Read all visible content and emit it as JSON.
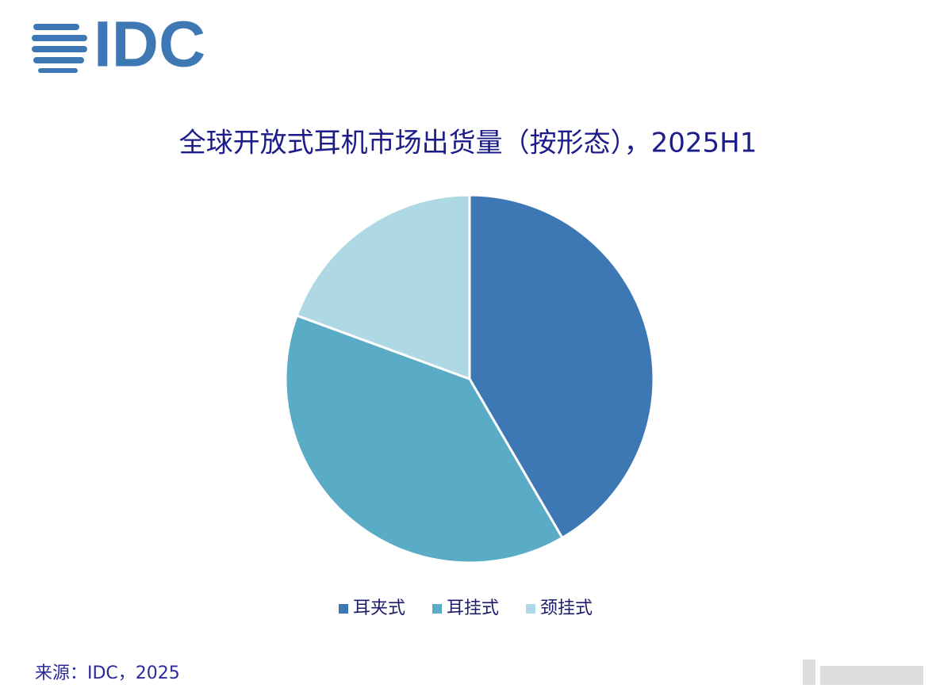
{
  "logo": "IDC",
  "chart_data": {
    "type": "pie",
    "title": "全球开放式耳机市场出货量（按形态），2025H1",
    "categories": [
      "耳夹式",
      "耳挂式",
      "颈挂式"
    ],
    "values": [
      41.6,
      39.0,
      19.4
    ],
    "colors": [
      "#3d78b5",
      "#5aabc6",
      "#add8e4"
    ],
    "legend": "bottom"
  },
  "source": "来源：IDC，2025"
}
